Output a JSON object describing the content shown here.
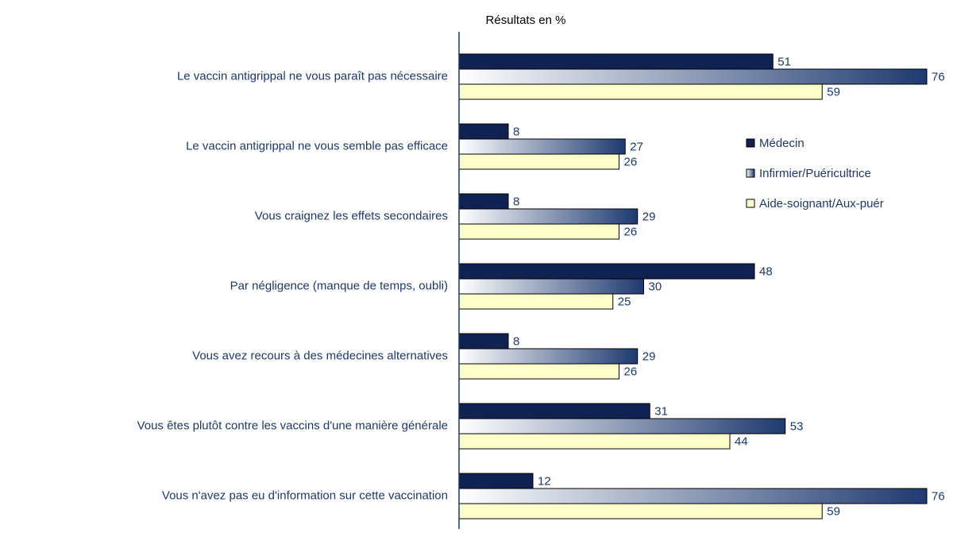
{
  "chart_data": {
    "type": "bar",
    "orientation": "horizontal",
    "x_label": "Résultats en %",
    "categories": [
      "Le vaccin antigrippal ne vous paraît pas nécessaire",
      "Le vaccin antigrippal ne vous semble pas efficace",
      "Vous craignez les effets secondaires",
      "Par négligence (manque de temps, oubli)",
      "Vous avez recours à des médecines alternatives",
      "Vous êtes plutôt contre les vaccins d'une manière générale",
      "Vous n'avez pas eu d'information sur cette vaccination"
    ],
    "series": [
      {
        "name": "Médecin",
        "color": "#0f2252",
        "values": [
          51,
          8,
          8,
          48,
          8,
          31,
          12
        ]
      },
      {
        "name": "Infirmier/Puéricultrice",
        "color": "#1f3a70",
        "gradient": true,
        "values": [
          76,
          27,
          29,
          30,
          29,
          53,
          76
        ]
      },
      {
        "name": "Aide-soignant/Aux-puér",
        "color": "#ffffcc",
        "values": [
          59,
          26,
          26,
          25,
          26,
          44,
          59
        ]
      }
    ],
    "xlim": [
      0,
      80
    ],
    "legend": "right"
  }
}
